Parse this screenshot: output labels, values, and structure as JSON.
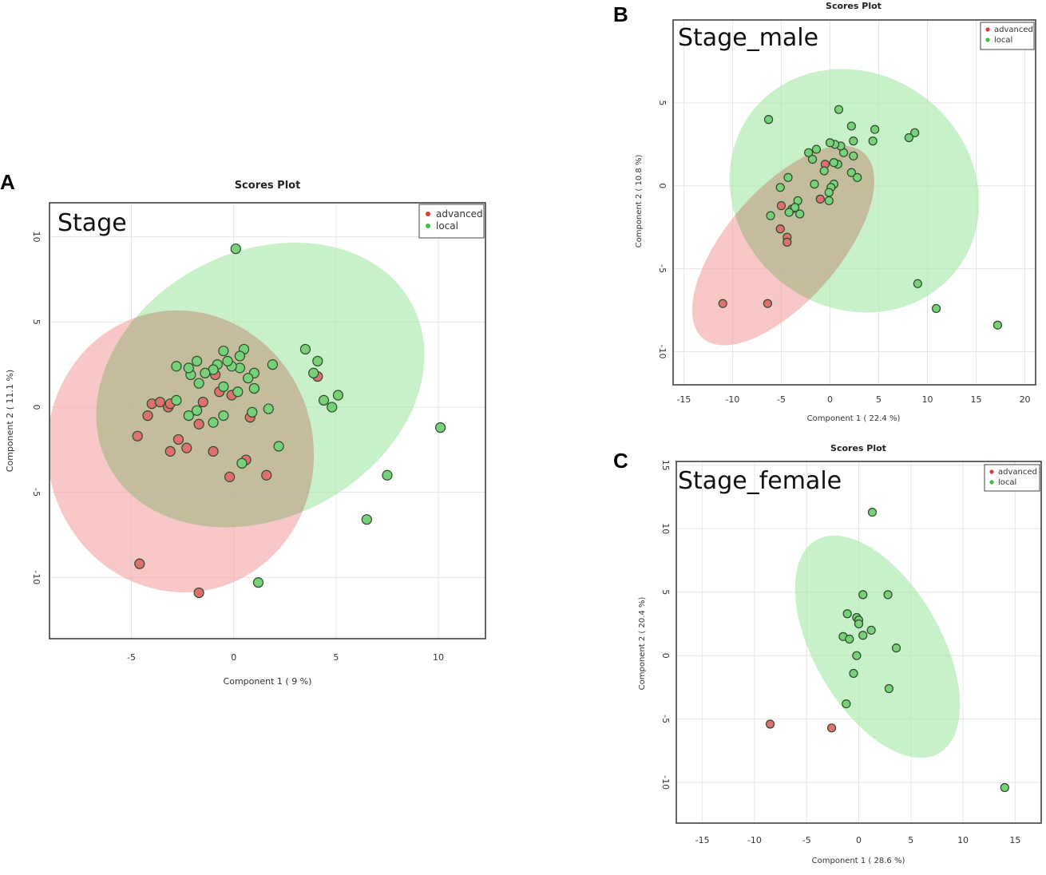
{
  "colors": {
    "advanced": "#e03c3c",
    "local": "#3cbf3c",
    "advanced_point": "#e07070",
    "local_point": "#78d078",
    "advanced_ellipse": "#f4a6a6",
    "local_ellipse": "#a8e8a8",
    "grid": "#e6e6e6",
    "frame": "#333333"
  },
  "chart_data": [
    {
      "id": "A",
      "type": "scatter",
      "panel_label": "A",
      "title": "Scores Plot",
      "annotation": "Stage",
      "xlabel": "Component 1 ( 9 %)",
      "ylabel": "Component 2 ( 11.1 %)",
      "xlim": [
        -9,
        12.3
      ],
      "ylim": [
        -13.6,
        12
      ],
      "xticks": [
        -5,
        0,
        5,
        10
      ],
      "yticks": [
        -10,
        -5,
        0,
        5,
        10
      ],
      "grid": true,
      "legend": {
        "placement": "top-right",
        "entries": [
          "advanced",
          "local"
        ]
      },
      "ellipses": [
        {
          "group": "advanced",
          "cx": -2.6,
          "cy": -2.6,
          "rx": 6.5,
          "ry": 8.3,
          "angle": -12
        },
        {
          "group": "local",
          "cx": 1.3,
          "cy": 1.3,
          "rx": 8.4,
          "ry": 7.8,
          "angle": -28
        }
      ],
      "series": [
        {
          "name": "advanced",
          "points": [
            [
              -4.6,
              -9.2
            ],
            [
              -1.7,
              -10.9
            ],
            [
              -4.7,
              -1.7
            ],
            [
              -4.2,
              -0.5
            ],
            [
              -4.0,
              0.2
            ],
            [
              -3.6,
              0.3
            ],
            [
              -3.2,
              0.0
            ],
            [
              -3.1,
              0.2
            ],
            [
              -3.1,
              -2.6
            ],
            [
              -2.7,
              -1.9
            ],
            [
              -2.3,
              -2.4
            ],
            [
              -1.7,
              -1.0
            ],
            [
              -1.5,
              0.3
            ],
            [
              -1.0,
              -2.6
            ],
            [
              -0.9,
              1.9
            ],
            [
              -0.7,
              0.9
            ],
            [
              -0.1,
              0.7
            ],
            [
              -0.2,
              -4.1
            ],
            [
              0.6,
              -3.1
            ],
            [
              0.8,
              -0.6
            ],
            [
              1.6,
              -4.0
            ],
            [
              4.1,
              1.8
            ]
          ]
        },
        {
          "name": "local",
          "points": [
            [
              0.1,
              9.3
            ],
            [
              10.1,
              -1.2
            ],
            [
              7.5,
              -4.0
            ],
            [
              6.5,
              -6.6
            ],
            [
              1.2,
              -10.3
            ],
            [
              3.5,
              3.4
            ],
            [
              4.1,
              2.7
            ],
            [
              3.9,
              2.0
            ],
            [
              4.4,
              0.4
            ],
            [
              5.1,
              0.7
            ],
            [
              4.8,
              0.0
            ],
            [
              2.2,
              -2.3
            ],
            [
              1.7,
              -0.1
            ],
            [
              1.9,
              2.5
            ],
            [
              1.0,
              1.1
            ],
            [
              1.0,
              2.0
            ],
            [
              0.7,
              1.7
            ],
            [
              0.5,
              3.4
            ],
            [
              0.3,
              3.0
            ],
            [
              0.3,
              2.3
            ],
            [
              0.2,
              0.9
            ],
            [
              -0.1,
              2.4
            ],
            [
              -0.3,
              2.7
            ],
            [
              -0.5,
              1.2
            ],
            [
              -0.5,
              -0.5
            ],
            [
              -0.5,
              3.3
            ],
            [
              -0.8,
              2.5
            ],
            [
              -1.0,
              2.2
            ],
            [
              -1.4,
              2.0
            ],
            [
              -1.7,
              1.4
            ],
            [
              -1.8,
              2.7
            ],
            [
              -2.1,
              1.9
            ],
            [
              -2.2,
              2.3
            ],
            [
              -2.2,
              -0.5
            ],
            [
              -1.8,
              -0.2
            ],
            [
              -2.8,
              2.4
            ],
            [
              -2.8,
              0.4
            ],
            [
              -1.0,
              -0.9
            ],
            [
              0.4,
              -3.3
            ],
            [
              0.9,
              -0.3
            ]
          ]
        }
      ]
    },
    {
      "id": "B",
      "type": "scatter",
      "panel_label": "B",
      "title": "Scores Plot",
      "annotation": "Stage_male",
      "xlabel": "Component 1 ( 22.4 %)",
      "ylabel": "Component 2 ( 10.8 %)",
      "xlim": [
        -16.1,
        21.1
      ],
      "ylim": [
        -12,
        10
      ],
      "xticks": [
        -15,
        -10,
        -5,
        0,
        5,
        10,
        15,
        20
      ],
      "yticks": [
        -10,
        -5,
        0,
        5
      ],
      "grid": true,
      "legend": {
        "placement": "top-right",
        "entries": [
          "advanced",
          "local"
        ]
      },
      "ellipses": [
        {
          "group": "advanced",
          "cx": -4.8,
          "cy": -3.6,
          "rx": 12.6,
          "ry": 3.4,
          "angle": -49
        },
        {
          "group": "local",
          "cx": 2.5,
          "cy": -0.3,
          "rx": 12.0,
          "ry": 7.8,
          "angle": -52
        }
      ],
      "series": [
        {
          "name": "advanced",
          "points": [
            [
              -11.0,
              -7.1
            ],
            [
              -6.4,
              -7.1
            ],
            [
              -5.1,
              -2.6
            ],
            [
              -4.4,
              -3.1
            ],
            [
              -4.4,
              -3.4
            ],
            [
              -5.0,
              -1.2
            ],
            [
              -3.9,
              -1.4
            ],
            [
              -1.0,
              -0.8
            ],
            [
              -0.5,
              1.3
            ]
          ]
        },
        {
          "name": "local",
          "points": [
            [
              -6.3,
              4.0
            ],
            [
              0.9,
              4.6
            ],
            [
              17.2,
              -8.4
            ],
            [
              10.9,
              -7.4
            ],
            [
              9.0,
              -5.9
            ],
            [
              8.7,
              3.2
            ],
            [
              8.1,
              2.9
            ],
            [
              4.6,
              3.4
            ],
            [
              4.4,
              2.7
            ],
            [
              2.2,
              3.6
            ],
            [
              2.4,
              2.7
            ],
            [
              2.4,
              1.8
            ],
            [
              1.4,
              2.0
            ],
            [
              1.1,
              2.4
            ],
            [
              0.5,
              2.5
            ],
            [
              0.0,
              2.6
            ],
            [
              0.8,
              1.3
            ],
            [
              0.4,
              1.4
            ],
            [
              2.2,
              0.8
            ],
            [
              2.8,
              0.5
            ],
            [
              -0.6,
              0.9
            ],
            [
              -1.8,
              1.6
            ],
            [
              -1.4,
              2.2
            ],
            [
              -2.2,
              2.0
            ],
            [
              0.4,
              0.1
            ],
            [
              0.1,
              -0.1
            ],
            [
              -0.1,
              -0.4
            ],
            [
              -0.1,
              -0.9
            ],
            [
              -1.6,
              0.1
            ],
            [
              -3.3,
              -0.9
            ],
            [
              -3.6,
              -1.3
            ],
            [
              -3.1,
              -1.7
            ],
            [
              -4.2,
              -1.6
            ],
            [
              -6.1,
              -1.8
            ],
            [
              -4.3,
              0.5
            ],
            [
              -5.1,
              -0.1
            ]
          ]
        }
      ]
    },
    {
      "id": "C",
      "type": "scatter",
      "panel_label": "C",
      "title": "Scores Plot",
      "annotation": "Stage_female",
      "xlabel": "Component 1 ( 28.6 %)",
      "ylabel": "Component 2 ( 20.4 %)",
      "xlim": [
        -17.5,
        17.5
      ],
      "ylim": [
        -13.2,
        15.3
      ],
      "xticks": [
        -15,
        -10,
        -5,
        0,
        5,
        10,
        15
      ],
      "yticks": [
        -10,
        -5,
        0,
        5,
        10,
        15
      ],
      "grid": true,
      "legend": {
        "placement": "top-right",
        "entries": [
          "advanced",
          "local"
        ]
      },
      "ellipses": [
        {
          "group": "local",
          "cx": 1.8,
          "cy": 0.7,
          "rx": 11.8,
          "ry": 5.0,
          "angle": 60
        }
      ],
      "series": [
        {
          "name": "advanced",
          "points": [
            [
              -8.5,
              -5.4
            ],
            [
              -2.6,
              -5.7
            ]
          ]
        },
        {
          "name": "local",
          "points": [
            [
              1.3,
              11.3
            ],
            [
              14.0,
              -10.4
            ],
            [
              0.4,
              4.8
            ],
            [
              2.8,
              4.8
            ],
            [
              -1.1,
              3.3
            ],
            [
              -0.2,
              3.0
            ],
            [
              0.0,
              2.8
            ],
            [
              0.0,
              2.5
            ],
            [
              1.2,
              2.0
            ],
            [
              -1.5,
              1.5
            ],
            [
              -0.9,
              1.3
            ],
            [
              0.4,
              1.6
            ],
            [
              3.6,
              0.6
            ],
            [
              -0.2,
              0.0
            ],
            [
              -0.5,
              -1.4
            ],
            [
              2.9,
              -2.6
            ],
            [
              -1.2,
              -3.8
            ]
          ]
        }
      ]
    }
  ]
}
